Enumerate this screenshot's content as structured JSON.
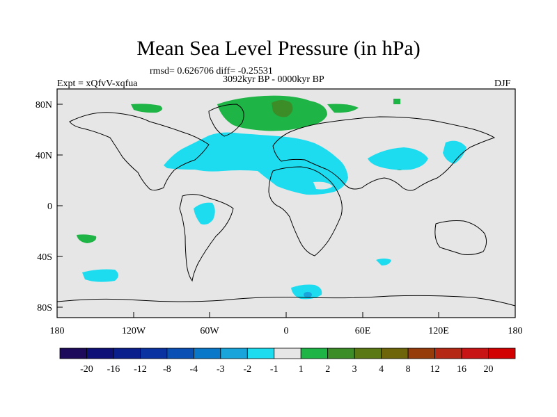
{
  "title": "Mean Sea Level Pressure (in hPa)",
  "stats_line": "rmsd= 0.626706 diff= -0.25531",
  "period_line": "3092kyr BP - 0000kyr BP",
  "experiment_line": "Expt = xQfvV-xqfua",
  "season": "DJF",
  "axes": {
    "y_ticks": [
      "80N",
      "40N",
      "0",
      "40S",
      "80S"
    ],
    "x_ticks": [
      "180",
      "120W",
      "60W",
      "0",
      "60E",
      "120E",
      "180"
    ]
  },
  "colorbar": {
    "labels": [
      "-20",
      "-16",
      "-12",
      "-8",
      "-4",
      "-3",
      "-2",
      "-1",
      "1",
      "2",
      "3",
      "4",
      "8",
      "12",
      "16",
      "20"
    ],
    "colors": [
      "#1e0a5a",
      "#0f0f78",
      "#0a1e8c",
      "#0a32a0",
      "#0a50b4",
      "#0a78c8",
      "#19a5dc",
      "#1edcf0",
      "#e6e6e6",
      "#1eb446",
      "#3c8c28",
      "#5a7814",
      "#6e640a",
      "#963c0a",
      "#b42814",
      "#c81414",
      "#d20000"
    ]
  },
  "map": {
    "background_color": "#e6e6e6",
    "positive_color": "#1eb446",
    "negative_color": "#1edcf0"
  }
}
